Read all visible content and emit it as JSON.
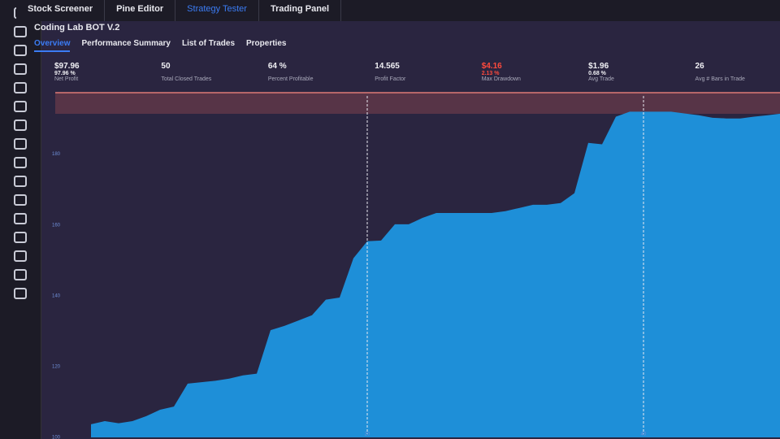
{
  "tabs": [
    "Stock Screener",
    "Pine Editor",
    "Strategy Tester",
    "Trading Panel"
  ],
  "strategy_name": "Coding Lab BOT V.2",
  "subtabs": [
    "Overview",
    "Performance Summary",
    "List of Trades",
    "Properties"
  ],
  "stats": [
    {
      "value": "$97.96",
      "percent": "97.96 %",
      "label": "Net Profit"
    },
    {
      "value": "50",
      "label": "Total Closed Trades"
    },
    {
      "value": "64 %",
      "label": "Percent Profitable"
    },
    {
      "value": "14.565",
      "label": "Profit Factor"
    },
    {
      "value": "$4.16",
      "percent": "2.13 %",
      "label": "Max Drawdown"
    },
    {
      "value": "$1.96",
      "percent": "0.68 %",
      "label": "Avg Trade"
    },
    {
      "value": "26",
      "label": "Avg # Bars in Trade"
    }
  ],
  "chart_data": {
    "type": "area",
    "x": [
      0,
      1,
      2,
      3,
      4,
      5,
      6,
      7,
      8,
      9,
      10,
      11,
      12,
      13,
      14,
      15,
      16,
      17,
      18,
      19,
      20,
      21,
      22,
      23,
      24,
      25,
      26,
      27,
      28,
      29,
      30,
      31,
      32,
      33,
      34,
      35,
      36,
      37,
      38,
      39,
      40,
      41,
      42,
      43,
      44,
      45,
      46,
      47,
      48,
      49,
      50
    ],
    "series": [
      {
        "color": "#1e8fd8",
        "values": [
          103.7,
          104.6,
          104,
          104.6,
          106,
          107.8,
          108.7,
          115.2,
          115.6,
          116,
          116.6,
          117.5,
          118,
          130.3,
          131.5,
          133,
          134.5,
          138.9,
          139.5,
          150.6,
          155.4,
          155.6,
          160.2,
          160.2,
          162,
          163.4,
          163.4,
          163.4,
          163.4,
          163.4,
          163.9,
          164.8,
          165.7,
          165.7,
          166.2,
          169,
          183.2,
          182.8,
          190.6,
          192,
          192,
          192,
          192,
          191.5,
          191,
          190.3,
          190.1,
          190.1,
          190.6,
          191,
          191.5
        ]
      }
    ],
    "xlim": [
      0,
      50
    ],
    "xticks": [
      20,
      40
    ],
    "ylim": [
      100,
      196
    ],
    "yticks": [
      100,
      120,
      140,
      160,
      180
    ]
  }
}
